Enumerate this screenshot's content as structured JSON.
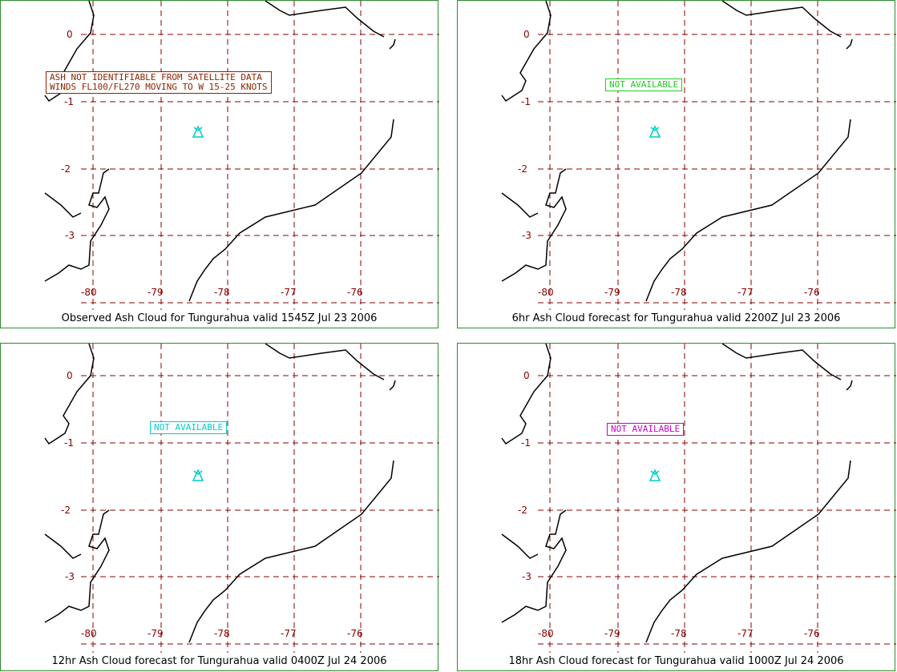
{
  "panels": [
    {
      "caption": "Observed Ash Cloud for Tungurahua valid 1545Z Jul 23 2006",
      "note_lines": [
        "ASH NOT IDENTIFIABLE FROM SATELLITE DATA",
        "WINDS FL100/FL270 MOVING TO W 15-25 KNOTS"
      ],
      "note_color": "#8b2500"
    },
    {
      "caption": "6hr Ash Cloud forecast for Tungurahua valid 2200Z Jul 23 2006",
      "note_lines": [
        "NOT AVAILABLE"
      ],
      "note_color": "#22cc22"
    },
    {
      "caption": "12hr Ash Cloud forecast for Tungurahua valid 0400Z Jul 24 2006",
      "note_lines": [
        "NOT AVAILABLE"
      ],
      "note_color": "#00cccc"
    },
    {
      "caption": "18hr Ash Cloud forecast for Tungurahua valid 1000Z Jul 24 2006",
      "note_lines": [
        "NOT AVAILABLE"
      ],
      "note_color": "#cc00cc"
    }
  ],
  "lat_labels": [
    "0",
    "-1",
    "-2",
    "-3"
  ],
  "lon_labels": [
    "-80",
    "-79",
    "-78",
    "-77",
    "-76"
  ],
  "volcano_icon": "volcano-icon",
  "colors": {
    "grid": "#8b0000",
    "border": "#2e8b2e",
    "volcano": "#00cccc"
  }
}
